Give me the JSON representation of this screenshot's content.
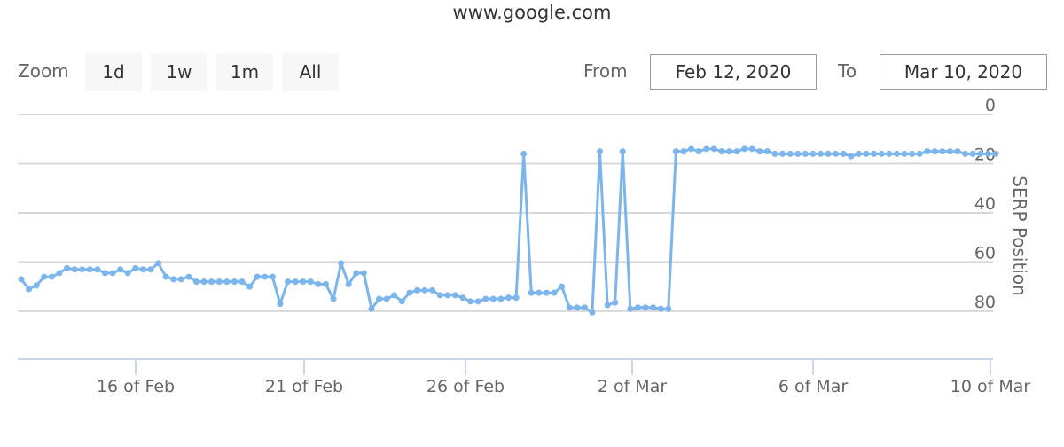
{
  "title": "www.google.com",
  "range_selector": {
    "zoom_label": "Zoom",
    "buttons": [
      "1d",
      "1w",
      "1m",
      "All"
    ],
    "from_label": "From",
    "from_value": "Feb 12, 2020",
    "to_label": "To",
    "to_value": "Mar 10, 2020"
  },
  "chart_data": {
    "type": "line",
    "title": "www.google.com",
    "ylabel": "SERP Position",
    "yaxis_reversed": true,
    "yaxis_position": "right",
    "ylim": [
      0,
      100
    ],
    "yticks": [
      "0",
      "20",
      "40",
      "60",
      "80"
    ],
    "xticks": [
      "16 of Feb",
      "21 of Feb",
      "26 of Feb",
      "2 of Mar",
      "6 of Mar",
      "10 of Mar"
    ],
    "grid": true,
    "line_color": "#7cb5ec",
    "markers": true,
    "values": [
      67,
      71,
      69.5,
      66,
      66,
      64.5,
      62.5,
      63,
      63,
      63,
      63,
      64.5,
      64.5,
      63,
      64.5,
      62.5,
      63,
      63,
      60.5,
      66,
      67,
      67,
      66,
      68,
      68,
      68,
      68,
      68,
      68,
      68,
      70,
      66,
      66,
      66,
      77,
      68,
      68,
      68,
      68,
      69,
      69,
      75,
      60.5,
      69,
      64.5,
      64.5,
      79,
      75,
      75,
      73.5,
      76,
      72.5,
      71.5,
      71.5,
      71.5,
      73.5,
      73.5,
      73.5,
      74.5,
      76,
      76,
      75,
      75,
      75,
      74.5,
      74.5,
      16,
      72.5,
      72.5,
      72.5,
      72.5,
      70,
      78.5,
      78.5,
      78.5,
      80.5,
      15,
      77.5,
      76.5,
      15,
      79,
      78.5,
      78.5,
      78.5,
      79,
      79,
      15,
      15,
      14,
      15,
      14,
      14,
      15,
      15,
      15,
      14,
      14,
      15,
      15,
      16,
      16,
      16,
      16,
      16,
      16,
      16,
      16,
      16,
      16,
      17,
      16,
      16,
      16,
      16,
      16,
      16,
      16,
      16,
      16,
      15,
      15,
      15,
      15,
      15,
      16,
      16,
      16,
      16,
      16
    ]
  }
}
